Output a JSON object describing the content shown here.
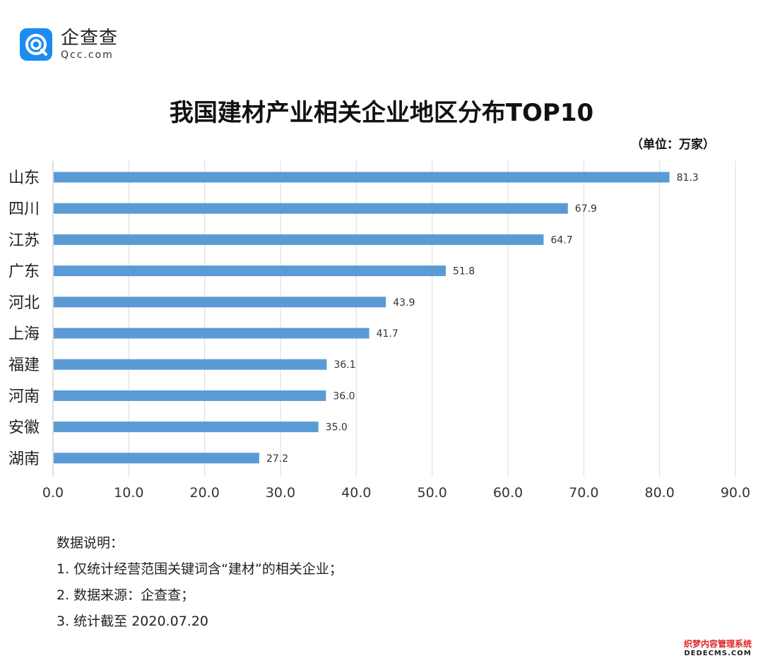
{
  "logo": {
    "name": "企查查",
    "url": "Qcc.com"
  },
  "chart_data": {
    "type": "bar",
    "orientation": "horizontal",
    "title": "我国建材产业相关企业地区分布TOP10",
    "unit_label": "（单位：万家）",
    "categories": [
      "山东",
      "四川",
      "江苏",
      "广东",
      "河北",
      "上海",
      "福建",
      "河南",
      "安徽",
      "湖南"
    ],
    "values": [
      81.3,
      67.9,
      64.7,
      51.8,
      43.9,
      41.7,
      36.1,
      36.0,
      35.0,
      27.2
    ],
    "value_labels": [
      "81.3",
      "67.9",
      "64.7",
      "51.8",
      "43.9",
      "41.7",
      "36.1",
      "36.0",
      "35.0",
      "27.2"
    ],
    "x_ticks": [
      "0.0",
      "10.0",
      "20.0",
      "30.0",
      "40.0",
      "50.0",
      "60.0",
      "70.0",
      "80.0",
      "90.0"
    ],
    "xlim": [
      0,
      90
    ],
    "grid": true,
    "bar_color": "#5b9bd5",
    "grid_color": "#d9d9d9"
  },
  "notes": {
    "heading": "数据说明：",
    "items": [
      "1. 仅统计经营范围关键词含“建材”的相关企业；",
      "2. 数据来源：企查查；",
      "3. 统计截至 2020.07.20"
    ]
  },
  "watermark": {
    "line1": "织梦内容管理系统",
    "line2": "DEDECMS.COM"
  }
}
